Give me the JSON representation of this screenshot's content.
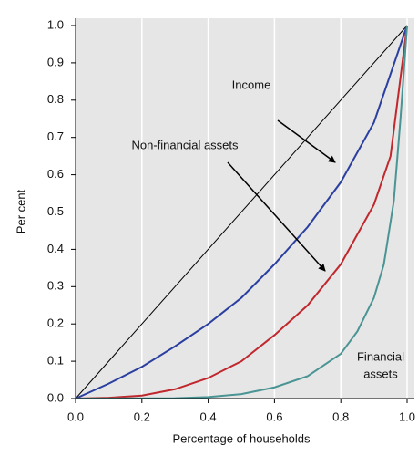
{
  "chart_data": {
    "type": "line",
    "xlabel": "Percentage of households",
    "ylabel": "Per cent",
    "xlim": [
      0,
      1
    ],
    "ylim": [
      0,
      1
    ],
    "xticks": [
      {
        "value": 0,
        "label": "0.0"
      },
      0.2,
      0.4,
      0.6,
      0.8,
      {
        "value": 1,
        "label": "1.0"
      }
    ],
    "yticks": [
      {
        "value": 0,
        "label": "0.0"
      },
      0.1,
      0.2,
      0.3,
      0.4,
      0.5,
      0.6,
      0.7,
      0.8,
      0.9,
      {
        "value": 1,
        "label": "1.0"
      }
    ],
    "grid": "x",
    "annotations": [
      "Income",
      "Non-financial assets",
      "Financial",
      "assets"
    ],
    "series": [
      {
        "color": "#000000",
        "x": [
          0,
          1
        ],
        "values": [
          0,
          1
        ]
      },
      {
        "color": "#2b3fa0",
        "x": [
          0,
          0.1,
          0.2,
          0.3,
          0.4,
          0.5,
          0.6,
          0.7,
          0.8,
          0.9,
          1
        ],
        "values": [
          0,
          0.04,
          0.085,
          0.14,
          0.2,
          0.27,
          0.36,
          0.46,
          0.58,
          0.74,
          1
        ]
      },
      {
        "color": "#c0282d",
        "x": [
          0,
          0.1,
          0.2,
          0.3,
          0.4,
          0.5,
          0.6,
          0.7,
          0.8,
          0.9,
          0.95,
          1
        ],
        "values": [
          0,
          0.002,
          0.008,
          0.025,
          0.055,
          0.1,
          0.17,
          0.25,
          0.36,
          0.52,
          0.65,
          1
        ]
      },
      {
        "color": "#4a9494",
        "x": [
          0,
          0.3,
          0.4,
          0.5,
          0.6,
          0.7,
          0.8,
          0.85,
          0.9,
          0.93,
          0.96,
          0.98,
          1
        ],
        "values": [
          0,
          0.001,
          0.004,
          0.012,
          0.03,
          0.06,
          0.12,
          0.18,
          0.27,
          0.36,
          0.53,
          0.75,
          1
        ]
      }
    ]
  }
}
